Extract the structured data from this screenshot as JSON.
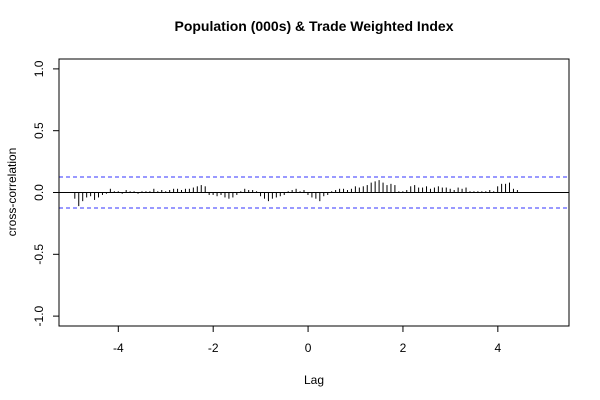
{
  "chart_data": {
    "type": "bar",
    "title": "Population (000s) & Trade Weighted Index",
    "xlabel": "Lag",
    "ylabel": "cross-correlation",
    "xlim": [
      -5.25,
      5.5
    ],
    "ylim": [
      -1.08,
      1.08
    ],
    "x_ticks": [
      -4,
      -2,
      0,
      2,
      4
    ],
    "x_tick_labels": [
      "-4",
      "-2",
      "0",
      "2",
      "4"
    ],
    "y_ticks": [
      -1.0,
      -0.5,
      0.0,
      0.5,
      1.0
    ],
    "y_tick_labels": [
      "-1.0",
      "-0.5",
      "0.0",
      "0.5",
      "1.0"
    ],
    "ci_bounds": [
      0.125,
      -0.125
    ],
    "lag_start": -4.917,
    "lag_step": 0.0833,
    "values": [
      -0.05,
      -0.11,
      -0.07,
      -0.04,
      -0.03,
      -0.06,
      -0.04,
      -0.02,
      -0.01,
      0.03,
      0.01,
      0.01,
      -0.01,
      0.02,
      0.01,
      0.01,
      -0.01,
      0.01,
      0.01,
      0.01,
      0.03,
      0.01,
      0.02,
      0.01,
      0.02,
      0.03,
      0.03,
      0.02,
      0.03,
      0.03,
      0.04,
      0.05,
      0.06,
      0.05,
      -0.02,
      -0.02,
      -0.03,
      -0.02,
      -0.04,
      -0.05,
      -0.04,
      -0.02,
      0.01,
      0.03,
      0.02,
      0.02,
      0.01,
      -0.03,
      -0.05,
      -0.07,
      -0.05,
      -0.04,
      -0.03,
      -0.02,
      0.01,
      0.02,
      0.03,
      0.01,
      0.02,
      -0.02,
      -0.04,
      -0.05,
      -0.07,
      -0.03,
      -0.02,
      0.01,
      0.02,
      0.03,
      0.03,
      0.02,
      0.03,
      0.05,
      0.04,
      0.05,
      0.06,
      0.08,
      0.09,
      0.1,
      0.08,
      0.06,
      0.07,
      0.06,
      0.01,
      0.01,
      0.02,
      0.05,
      0.06,
      0.04,
      0.04,
      0.05,
      0.03,
      0.04,
      0.05,
      0.04,
      0.04,
      0.03,
      0.02,
      0.04,
      0.03,
      0.04,
      0.01,
      0.01,
      0.01,
      0.01,
      0.01,
      0.02,
      0.01,
      0.05,
      0.07,
      0.07,
      0.08,
      0.03,
      0.02
    ]
  }
}
